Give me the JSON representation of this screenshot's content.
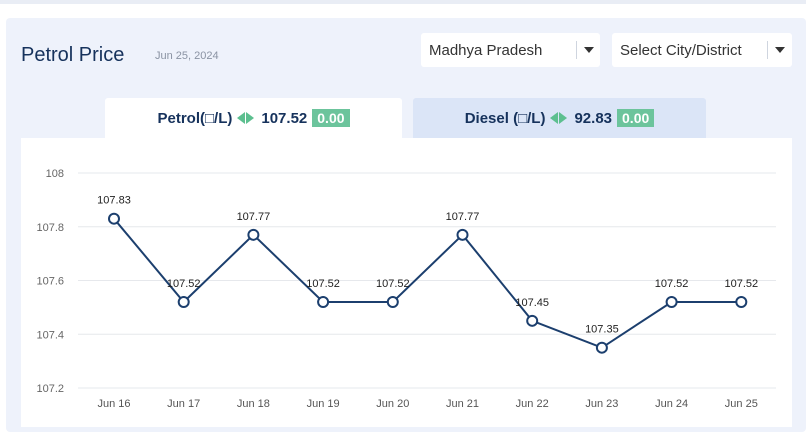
{
  "header": {
    "title": "Petrol Price",
    "date": "Jun 25, 2024"
  },
  "filters": {
    "state_value": "Madhya Pradesh",
    "city_placeholder": "Select City/District"
  },
  "tabs": [
    {
      "label": "Petrol(□/L)",
      "price": "107.52",
      "change": "0.00"
    },
    {
      "label": "Diesel (□/L)",
      "price": "92.83",
      "change": "0.00"
    }
  ],
  "colors": {
    "line": "#1c3f6e",
    "change_badge": "#6cc49c",
    "active_tab": "#ffffff",
    "inactive_tab": "#dbe5f7"
  },
  "chart_data": {
    "type": "line",
    "title": "",
    "xlabel": "",
    "ylabel": "",
    "categories": [
      "Jun 16",
      "Jun 17",
      "Jun 18",
      "Jun 19",
      "Jun 20",
      "Jun 21",
      "Jun 22",
      "Jun 23",
      "Jun 24",
      "Jun 25"
    ],
    "values": [
      107.83,
      107.52,
      107.77,
      107.52,
      107.52,
      107.77,
      107.45,
      107.35,
      107.52,
      107.52
    ],
    "data_labels": [
      "107.83",
      "107.52",
      "107.77",
      "107.52",
      "107.52",
      "107.77",
      "107.45",
      "107.35",
      "107.52",
      "107.52"
    ],
    "y_ticks": [
      "107.2",
      "107.4",
      "107.6",
      "107.8",
      "108"
    ],
    "ylim": [
      107.2,
      108
    ],
    "grid": true
  }
}
